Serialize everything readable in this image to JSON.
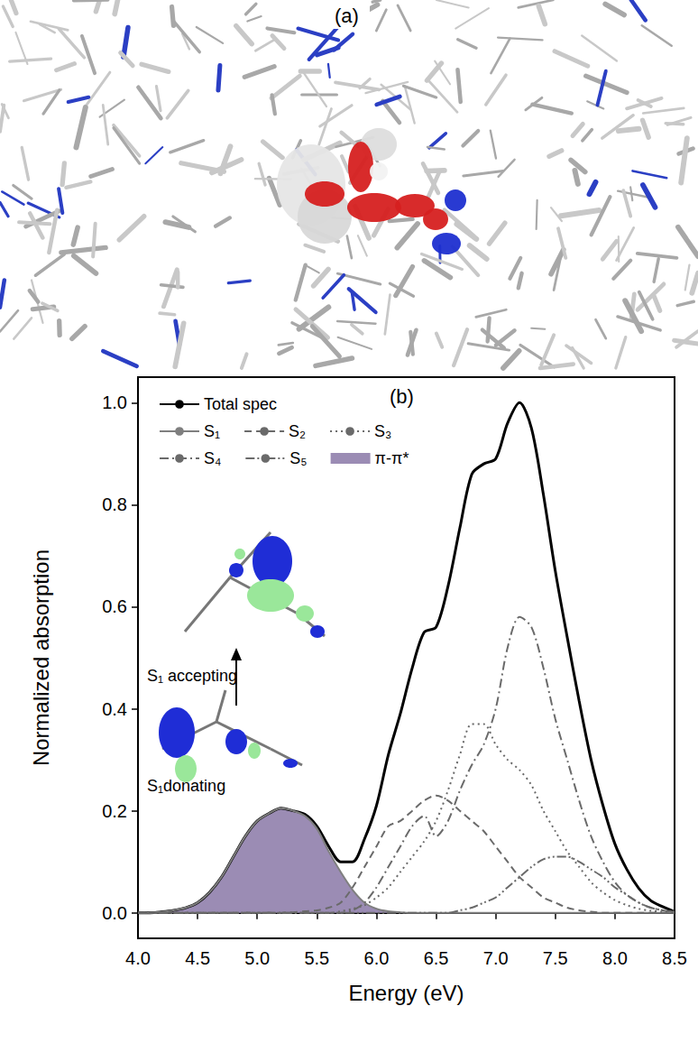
{
  "panel_a": {
    "label": "(a)"
  },
  "chart_data": {
    "type": "line",
    "panel_label": "(b)",
    "xlabel": "Energy (eV)",
    "ylabel": "Normalized absorption",
    "xlim": [
      4.0,
      8.5
    ],
    "xticks": [
      {
        "value": 4,
        "label": "4.0"
      },
      {
        "value": 4.5,
        "label": "4.5"
      },
      {
        "value": 5,
        "label": "5.0"
      },
      {
        "value": 5.5,
        "label": "5.5"
      },
      {
        "value": 6,
        "label": "6.0"
      },
      {
        "value": 6.5,
        "label": "6.5"
      },
      {
        "value": 7,
        "label": "7.0"
      },
      {
        "value": 7.5,
        "label": "7.5"
      },
      {
        "value": 8,
        "label": "8.0"
      },
      {
        "value": 8.5,
        "label": "8.5"
      }
    ],
    "ylim": [
      -0.05,
      1.05
    ],
    "yticks": [
      {
        "value": 0,
        "label": "0.0"
      },
      {
        "value": 0.2,
        "label": "0.2"
      },
      {
        "value": 0.4,
        "label": "0.4"
      },
      {
        "value": 0.6,
        "label": "0.6"
      },
      {
        "value": 0.8,
        "label": "0.8"
      },
      {
        "value": 1,
        "label": "1.0"
      }
    ],
    "legend": "upper left",
    "annotations": [
      "S₁ accepting",
      "S₁donating"
    ],
    "x": [
      4.0,
      4.1,
      4.2,
      4.3,
      4.4,
      4.5,
      4.6,
      4.7,
      4.8,
      4.9,
      5.0,
      5.1,
      5.2,
      5.3,
      5.4,
      5.5,
      5.6,
      5.7,
      5.8,
      5.9,
      6.0,
      6.1,
      6.2,
      6.3,
      6.4,
      6.5,
      6.6,
      6.7,
      6.8,
      6.9,
      7.0,
      7.1,
      7.2,
      7.3,
      7.4,
      7.5,
      7.6,
      7.7,
      7.8,
      7.9,
      8.0,
      8.1,
      8.2,
      8.3,
      8.4,
      8.5
    ],
    "series": [
      {
        "name": "Total spec",
        "type": "line",
        "color": "#000000",
        "line_style": "solid",
        "values": [
          0,
          0,
          0.002,
          0.005,
          0.01,
          0.02,
          0.04,
          0.07,
          0.11,
          0.15,
          0.18,
          0.195,
          0.205,
          0.2,
          0.193,
          0.17,
          0.13,
          0.1,
          0.1,
          0.145,
          0.21,
          0.31,
          0.39,
          0.48,
          0.55,
          0.56,
          0.64,
          0.755,
          0.86,
          0.88,
          0.89,
          0.96,
          1.0,
          0.95,
          0.82,
          0.67,
          0.54,
          0.415,
          0.3,
          0.21,
          0.135,
          0.085,
          0.048,
          0.024,
          0.012,
          0.002
        ]
      },
      {
        "name": "S₁",
        "type": "line",
        "color": "#7f7f7f",
        "line_style": "solid",
        "values": [
          0,
          0,
          0.002,
          0.005,
          0.01,
          0.02,
          0.04,
          0.07,
          0.11,
          0.15,
          0.18,
          0.195,
          0.205,
          0.2,
          0.19,
          0.165,
          0.12,
          0.08,
          0.045,
          0.02,
          0.008,
          0.003,
          0.001,
          0,
          0,
          0,
          0,
          0,
          0,
          0,
          0,
          0,
          0,
          0,
          0,
          0,
          0,
          0,
          0,
          0,
          0,
          0,
          0,
          0,
          0,
          0
        ]
      },
      {
        "name": "S₂",
        "type": "line",
        "color": "#6a6a6a",
        "line_style": "dashed",
        "values": [
          0,
          0,
          0,
          0,
          0,
          0,
          0,
          0,
          0,
          0,
          0,
          0,
          0,
          0.001,
          0.003,
          0.005,
          0.01,
          0.02,
          0.05,
          0.09,
          0.13,
          0.17,
          0.18,
          0.2,
          0.22,
          0.23,
          0.22,
          0.2,
          0.18,
          0.16,
          0.13,
          0.1,
          0.07,
          0.05,
          0.03,
          0.02,
          0.01,
          0.005,
          0.002,
          0,
          0,
          0,
          0,
          0,
          0,
          0
        ]
      },
      {
        "name": "S₃",
        "type": "line",
        "color": "#6a6a6a",
        "line_style": "dotted",
        "values": [
          0,
          0,
          0,
          0,
          0,
          0,
          0,
          0,
          0,
          0,
          0,
          0,
          0,
          0,
          0,
          0,
          0,
          0.003,
          0.008,
          0.015,
          0.03,
          0.05,
          0.08,
          0.11,
          0.14,
          0.18,
          0.24,
          0.31,
          0.37,
          0.37,
          0.33,
          0.3,
          0.28,
          0.25,
          0.2,
          0.16,
          0.12,
          0.09,
          0.06,
          0.04,
          0.025,
          0.015,
          0.008,
          0.004,
          0.002,
          0
        ]
      },
      {
        "name": "S₄",
        "type": "line",
        "color": "#6a6a6a",
        "line_style": "dashdot",
        "values": [
          0,
          0,
          0,
          0,
          0,
          0,
          0,
          0,
          0,
          0,
          0,
          0,
          0,
          0,
          0,
          0,
          0,
          0,
          0.005,
          0.02,
          0.05,
          0.09,
          0.13,
          0.17,
          0.19,
          0.15,
          0.18,
          0.24,
          0.29,
          0.33,
          0.4,
          0.52,
          0.58,
          0.56,
          0.48,
          0.38,
          0.3,
          0.22,
          0.15,
          0.1,
          0.06,
          0.035,
          0.02,
          0.01,
          0.005,
          0
        ]
      },
      {
        "name": "S₅",
        "type": "line",
        "color": "#6a6a6a",
        "line_style": "dashdotdot",
        "values": [
          0,
          0,
          0,
          0,
          0,
          0,
          0,
          0,
          0,
          0,
          0,
          0,
          0,
          0,
          0,
          0,
          0,
          0,
          0,
          0,
          0,
          0,
          0,
          0,
          0,
          0,
          0,
          0.005,
          0.01,
          0.02,
          0.03,
          0.05,
          0.07,
          0.09,
          0.105,
          0.11,
          0.11,
          0.1,
          0.085,
          0.07,
          0.05,
          0.035,
          0.02,
          0.01,
          0.005,
          0.002
        ]
      },
      {
        "name": "π-π*",
        "type": "area",
        "color": "#9b8cb4",
        "line_style": "solid",
        "values": [
          0,
          0,
          0.002,
          0.005,
          0.01,
          0.02,
          0.04,
          0.07,
          0.11,
          0.15,
          0.18,
          0.195,
          0.205,
          0.2,
          0.19,
          0.165,
          0.12,
          0.08,
          0.045,
          0.02,
          0.008,
          0.003,
          0.001,
          0,
          0,
          0,
          0,
          0,
          0,
          0,
          0,
          0,
          0,
          0,
          0,
          0,
          0,
          0,
          0,
          0,
          0,
          0,
          0,
          0,
          0,
          0
        ]
      }
    ]
  }
}
